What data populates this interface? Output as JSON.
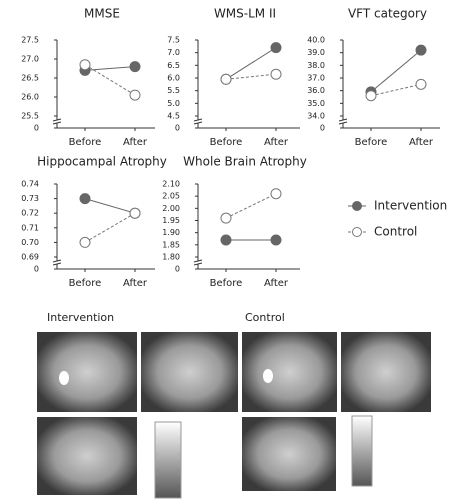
{
  "chart_data": [
    {
      "type": "line",
      "title": "MMSE",
      "categories": [
        "Before",
        "After"
      ],
      "axis_break": true,
      "ylim": [
        0,
        27.5
      ],
      "yticks": [
        0,
        25.5,
        {
          "value": 26,
          "label": "26.0"
        },
        26.5,
        {
          "value": 27,
          "label": "27.0"
        },
        27.5
      ],
      "series": [
        {
          "name": "Intervention",
          "color": "#666666",
          "style": "solid",
          "marker": "filled",
          "values": [
            26.7,
            26.8
          ]
        },
        {
          "name": "Control",
          "color": "#777777",
          "style": "dashed",
          "marker": "open",
          "values": [
            26.85,
            26.05
          ]
        }
      ]
    },
    {
      "type": "line",
      "title": "WMS-LM II",
      "categories": [
        "Before",
        "After"
      ],
      "axis_break": true,
      "ylim": [
        0,
        7.5
      ],
      "yticks": [
        0,
        4.5,
        {
          "value": 5,
          "label": "5.0"
        },
        5.5,
        {
          "value": 6,
          "label": "6.0"
        },
        6.5,
        {
          "value": 7,
          "label": "7.0"
        },
        7.5
      ],
      "series": [
        {
          "name": "Intervention",
          "color": "#666666",
          "style": "solid",
          "marker": "filled",
          "values": [
            5.95,
            7.2
          ]
        },
        {
          "name": "Control",
          "color": "#777777",
          "style": "dashed",
          "marker": "open",
          "values": [
            5.95,
            6.15
          ]
        }
      ]
    },
    {
      "type": "line",
      "title": "VFT category",
      "categories": [
        "Before",
        "After"
      ],
      "axis_break": true,
      "ylim": [
        0,
        40
      ],
      "yticks": [
        0,
        {
          "value": 34,
          "label": "34.0"
        },
        {
          "value": 35,
          "label": "35.0"
        },
        {
          "value": 36,
          "label": "36.0"
        },
        {
          "value": 37,
          "label": "37.0"
        },
        {
          "value": 38,
          "label": "38.0"
        },
        {
          "value": 39,
          "label": "39.0"
        },
        {
          "value": 40,
          "label": "40.0"
        }
      ],
      "series": [
        {
          "name": "Intervention",
          "color": "#666666",
          "style": "solid",
          "marker": "filled",
          "values": [
            35.9,
            39.2
          ]
        },
        {
          "name": "Control",
          "color": "#777777",
          "style": "dashed",
          "marker": "open",
          "values": [
            35.6,
            36.5
          ]
        }
      ]
    },
    {
      "type": "line",
      "title": "Hippocampal Atrophy",
      "categories": [
        "Before",
        "After"
      ],
      "axis_break": true,
      "ylim": [
        0,
        0.74
      ],
      "yticks": [
        0,
        0.69,
        {
          "value": 0.7,
          "label": "0.70"
        },
        0.71,
        0.72,
        0.73,
        0.74
      ],
      "series": [
        {
          "name": "Intervention",
          "color": "#666666",
          "style": "solid",
          "marker": "filled",
          "values": [
            0.73,
            0.72
          ]
        },
        {
          "name": "Control",
          "color": "#777777",
          "style": "dashed",
          "marker": "open",
          "values": [
            0.7,
            0.72
          ]
        }
      ]
    },
    {
      "type": "line",
      "title": "Whole Brain Atrophy",
      "categories": [
        "Before",
        "After"
      ],
      "axis_break": true,
      "ylim": [
        0,
        2.1
      ],
      "yticks": [
        0,
        {
          "value": 1.8,
          "label": "1.80"
        },
        1.85,
        {
          "value": 1.9,
          "label": "1.90"
        },
        1.95,
        {
          "value": 2,
          "label": "2.00"
        },
        2.05,
        {
          "value": 2.1,
          "label": "2.10"
        }
      ],
      "series": [
        {
          "name": "Intervention",
          "color": "#666666",
          "style": "solid",
          "marker": "filled",
          "values": [
            1.87,
            1.87
          ]
        },
        {
          "name": "Control",
          "color": "#777777",
          "style": "dashed",
          "marker": "open",
          "values": [
            1.96,
            2.06
          ]
        }
      ]
    }
  ],
  "images": {
    "labels": [
      "Intervention",
      "Control"
    ]
  }
}
